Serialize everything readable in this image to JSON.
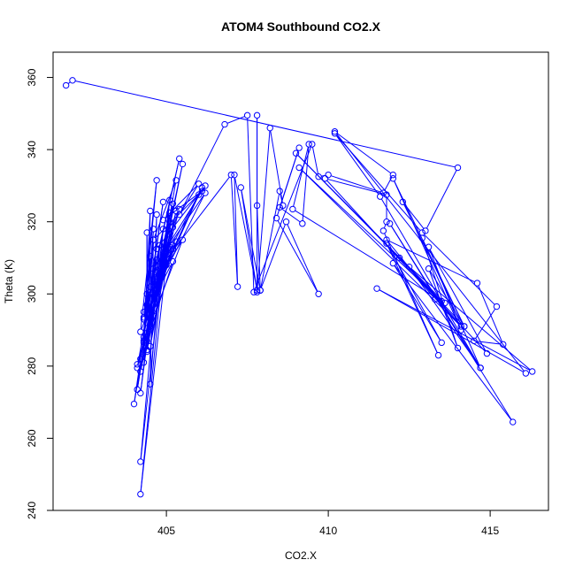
{
  "chart_data": {
    "type": "scatter",
    "title": "ATOM4 Southbound CO2.X",
    "xlabel": "CO2.X",
    "ylabel": "Theta (K)",
    "xlim": [
      401.5,
      416.8
    ],
    "ylim": [
      240,
      367
    ],
    "xticks": [
      405,
      410,
      415
    ],
    "yticks": [
      240,
      260,
      280,
      300,
      320,
      340,
      360
    ],
    "grid": false,
    "legend": "none",
    "series_color": "#0000ff",
    "marker": "open-circle",
    "connected": true,
    "series": [
      {
        "points": [
          [
            401.9,
            357.8
          ],
          [
            402.1,
            359.2
          ],
          [
            414.0,
            335.0
          ],
          [
            413.0,
            317.5
          ],
          [
            412.3,
            325.5
          ],
          [
            414.2,
            291.0
          ],
          [
            412.0,
            332.0
          ],
          [
            414.1,
            290.0
          ],
          [
            413.1,
            313.0
          ],
          [
            414.9,
            283.5
          ],
          [
            412.2,
            310.0
          ],
          [
            414.2,
            291.0
          ],
          [
            413.1,
            307.0
          ],
          [
            414.0,
            285.0
          ],
          [
            412.9,
            315.5
          ],
          [
            414.7,
            279.5
          ],
          [
            412.5,
            307.5
          ],
          [
            416.3,
            278.5
          ],
          [
            411.5,
            301.5
          ],
          [
            416.1,
            278.0
          ],
          [
            410.2,
            345.0
          ],
          [
            412.0,
            333.0
          ],
          [
            411.7,
            328.0
          ],
          [
            410.0,
            333.0
          ],
          [
            409.7,
            332.5
          ],
          [
            409.5,
            341.5
          ],
          [
            407.7,
            300.5
          ],
          [
            407.5,
            349.5
          ],
          [
            406.8,
            347.0
          ],
          [
            405.4,
            322.0
          ],
          [
            406.0,
            330.5
          ],
          [
            404.9,
            320.5
          ],
          [
            406.1,
            328.5
          ],
          [
            404.6,
            315.0
          ],
          [
            405.3,
            331.5
          ],
          [
            404.5,
            291.0
          ],
          [
            404.4,
            300.0
          ],
          [
            404.3,
            288.0
          ],
          [
            404.7,
            309.5
          ],
          [
            404.3,
            281.0
          ],
          [
            405.0,
            312.0
          ],
          [
            404.2,
            278.5
          ],
          [
            405.5,
            336.0
          ],
          [
            404.2,
            282.0
          ],
          [
            404.9,
            325.5
          ],
          [
            404.5,
            302.0
          ],
          [
            405.4,
            337.5
          ],
          [
            404.3,
            293.0
          ],
          [
            404.7,
            331.5
          ],
          [
            404.2,
            289.5
          ],
          [
            405.0,
            308.0
          ],
          [
            404.1,
            280.5
          ],
          [
            405.1,
            313.0
          ],
          [
            404.1,
            279.5
          ],
          [
            404.5,
            300.5
          ],
          [
            404.0,
            269.5
          ],
          [
            404.7,
            306.0
          ],
          [
            404.1,
            273.5
          ],
          [
            404.6,
            302.5
          ],
          [
            404.2,
            272.5
          ],
          [
            404.8,
            313.5
          ],
          [
            404.2,
            253.5
          ],
          [
            405.1,
            326.0
          ],
          [
            404.2,
            244.5
          ],
          [
            405.2,
            325.0
          ],
          [
            404.4,
            284.0
          ],
          [
            404.5,
            323.0
          ],
          [
            404.3,
            286.5
          ],
          [
            404.6,
            315.0
          ],
          [
            404.5,
            275.0
          ],
          [
            404.9,
            318.0
          ],
          [
            404.6,
            294.0
          ],
          [
            404.7,
            322.0
          ],
          [
            404.6,
            297.0
          ],
          [
            405.1,
            316.5
          ],
          [
            404.5,
            285.5
          ],
          [
            405.3,
            323.0
          ],
          [
            404.8,
            305.0
          ],
          [
            405.5,
            315.0
          ],
          [
            404.5,
            291.5
          ],
          [
            405.2,
            318.5
          ],
          [
            404.9,
            310.5
          ],
          [
            405.4,
            323.5
          ],
          [
            405.0,
            310.0
          ],
          [
            405.3,
            314.5
          ],
          [
            404.7,
            301.0
          ],
          [
            405.1,
            320.0
          ],
          [
            404.4,
            284.5
          ],
          [
            404.6,
            318.0
          ],
          [
            404.4,
            297.0
          ],
          [
            404.4,
            317.0
          ],
          [
            404.4,
            292.0
          ],
          [
            404.5,
            310.5
          ],
          [
            404.3,
            293.5
          ],
          [
            405.2,
            309.0
          ],
          [
            404.4,
            287.0
          ],
          [
            405.1,
            322.5
          ],
          [
            404.4,
            290.5
          ],
          [
            405.2,
            313.5
          ],
          [
            404.3,
            287.0
          ],
          [
            405.2,
            312.5
          ],
          [
            404.3,
            295.0
          ],
          [
            405.0,
            313.5
          ],
          [
            404.7,
            312.5
          ],
          [
            406.2,
            330.0
          ],
          [
            404.6,
            307.0
          ],
          [
            406.2,
            328.0
          ],
          [
            404.7,
            301.5
          ],
          [
            406.0,
            327.5
          ],
          [
            404.8,
            304.5
          ],
          [
            406.1,
            329.5
          ],
          [
            404.9,
            308.5
          ],
          [
            407.0,
            333.0
          ],
          [
            407.2,
            302.0
          ],
          [
            407.1,
            333.0
          ],
          [
            407.8,
            301.0
          ],
          [
            407.3,
            329.5
          ],
          [
            407.9,
            301.0
          ],
          [
            407.8,
            324.5
          ],
          [
            407.8,
            349.5
          ],
          [
            407.8,
            300.5
          ],
          [
            408.2,
            346.0
          ],
          [
            408.6,
            324.5
          ],
          [
            408.5,
            328.5
          ],
          [
            407.9,
            301.0
          ],
          [
            408.7,
            320.0
          ],
          [
            409.7,
            300.0
          ],
          [
            408.4,
            321.0
          ],
          [
            409.1,
            340.5
          ],
          [
            408.5,
            324.0
          ],
          [
            409.2,
            319.5
          ],
          [
            409.4,
            341.5
          ],
          [
            408.9,
            323.5
          ],
          [
            413.6,
            297.5
          ],
          [
            409.0,
            339.0
          ],
          [
            413.5,
            298.0
          ],
          [
            409.1,
            335.0
          ],
          [
            414.1,
            291.0
          ],
          [
            409.9,
            332.0
          ],
          [
            411.8,
            327.5
          ],
          [
            411.8,
            320.0
          ],
          [
            411.7,
            317.5
          ],
          [
            413.4,
            283.0
          ],
          [
            411.8,
            314.0
          ],
          [
            413.5,
            286.5
          ],
          [
            412.0,
            308.5
          ],
          [
            415.7,
            264.5
          ],
          [
            411.9,
            319.5
          ],
          [
            414.7,
            279.5
          ],
          [
            411.6,
            327.0
          ],
          [
            410.2,
            344.5
          ],
          [
            412.9,
            317.0
          ],
          [
            415.2,
            296.5
          ],
          [
            414.5,
            287.0
          ],
          [
            415.4,
            286.0
          ],
          [
            414.6,
            303.0
          ],
          [
            411.8,
            315.0
          ],
          [
            413.3,
            298.5
          ]
        ]
      }
    ]
  }
}
